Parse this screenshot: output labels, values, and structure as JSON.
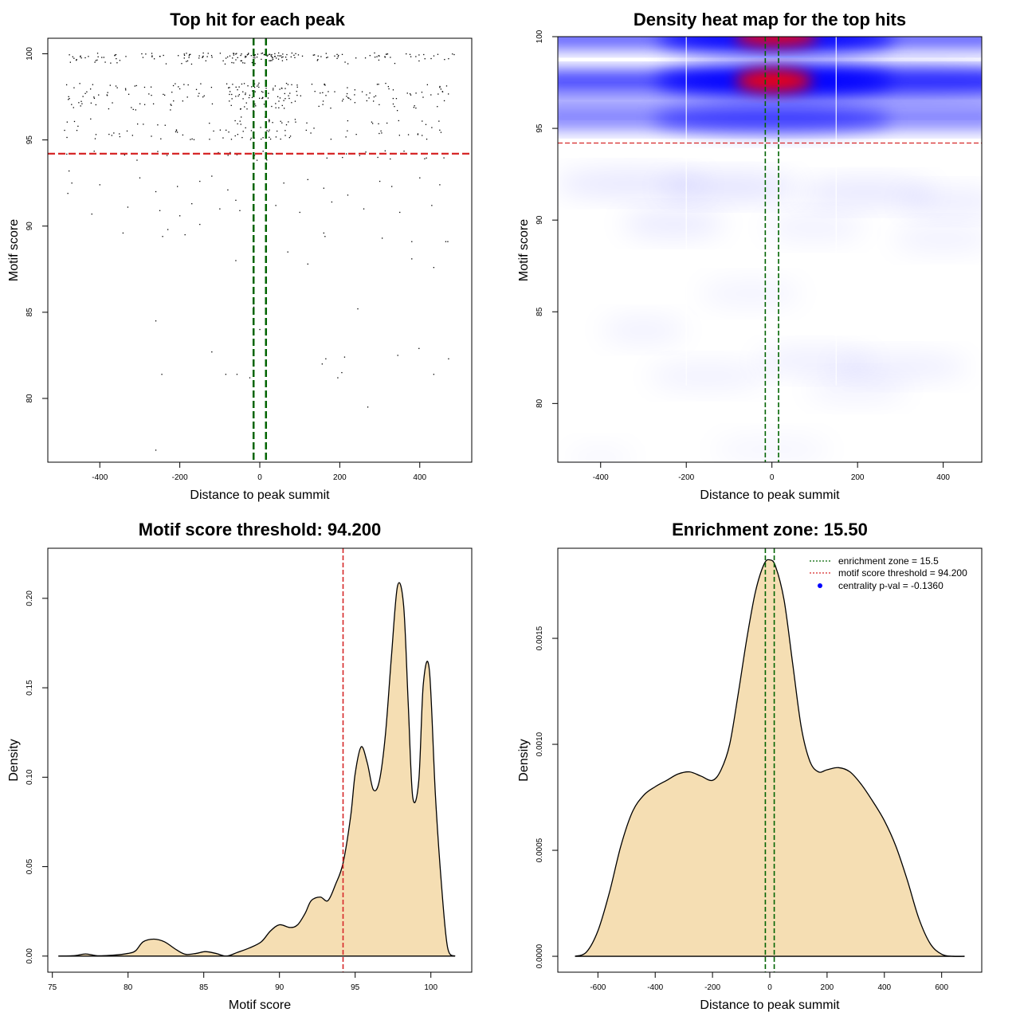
{
  "colors": {
    "threshold_line": "#d62728",
    "zone_line": "#006400",
    "density_fill": "#f5deb3",
    "heat_low": "#ffffff",
    "heat_mid": "#0000ff",
    "heat_high": "#ff0000",
    "point": "#000000",
    "legend_dot": "#0000ff"
  },
  "chart_data": [
    {
      "id": "scatter",
      "type": "scatter",
      "title": "Top hit for each peak",
      "xlabel": "Distance to peak summit",
      "ylabel": "Motif score",
      "xlim": [
        -530,
        530
      ],
      "ylim": [
        76.3,
        100.9
      ],
      "x_ticks": [
        -400,
        -200,
        0,
        200,
        400
      ],
      "y_ticks": [
        80,
        85,
        90,
        95,
        100
      ],
      "threshold": 94.2,
      "zone": [
        -15.5,
        15.5
      ],
      "score_bands": [
        {
          "y": 99.9,
          "count": 130,
          "spread": 0.15
        },
        {
          "y": 99.6,
          "count": 60,
          "spread": 0.2
        },
        {
          "y": 98.1,
          "count": 70,
          "spread": 0.2
        },
        {
          "y": 97.6,
          "count": 90,
          "spread": 0.25
        },
        {
          "y": 97.0,
          "count": 60,
          "spread": 0.3
        },
        {
          "y": 96.0,
          "count": 40,
          "spread": 0.35
        },
        {
          "y": 95.3,
          "count": 70,
          "spread": 0.3
        },
        {
          "y": 94.1,
          "count": 30,
          "spread": 0.3
        }
      ],
      "sparse_points": [
        [
          -477,
          93.2
        ],
        [
          -470,
          92.5
        ],
        [
          -480,
          91.9
        ],
        [
          -400,
          92.4
        ],
        [
          -300,
          92.8
        ],
        [
          -260,
          92.0
        ],
        [
          -206,
          92.3
        ],
        [
          -150,
          92.6
        ],
        [
          -120,
          92.9
        ],
        [
          -80,
          92.1
        ],
        [
          -60,
          91.5
        ],
        [
          60,
          92.5
        ],
        [
          120,
          92.7
        ],
        [
          160,
          92.2
        ],
        [
          220,
          91.8
        ],
        [
          300,
          92.6
        ],
        [
          330,
          92.3
        ],
        [
          400,
          92.8
        ],
        [
          450,
          92.4
        ],
        [
          -330,
          91.1
        ],
        [
          -250,
          90.9
        ],
        [
          -200,
          90.6
        ],
        [
          -170,
          91.3
        ],
        [
          -100,
          91.0
        ],
        [
          -50,
          90.9
        ],
        [
          40,
          91.2
        ],
        [
          100,
          90.8
        ],
        [
          180,
          91.4
        ],
        [
          260,
          91.0
        ],
        [
          350,
          90.8
        ],
        [
          430,
          91.2
        ],
        [
          -420,
          90.7
        ],
        [
          -342,
          89.6
        ],
        [
          -243,
          89.4
        ],
        [
          -230,
          89.8
        ],
        [
          -187,
          89.5
        ],
        [
          -150,
          90.1
        ],
        [
          160,
          89.6
        ],
        [
          163,
          89.4
        ],
        [
          306,
          89.3
        ],
        [
          380,
          89.1
        ],
        [
          465,
          89.1
        ],
        [
          470,
          89.1
        ],
        [
          -60,
          88.0
        ],
        [
          70,
          88.5
        ],
        [
          120,
          87.8
        ],
        [
          380,
          88.1
        ],
        [
          435,
          87.6
        ],
        [
          245,
          85.2
        ],
        [
          -260,
          84.5
        ],
        [
          -120,
          82.7
        ],
        [
          156,
          82.0
        ],
        [
          165,
          82.3
        ],
        [
          212,
          82.4
        ],
        [
          345,
          82.5
        ],
        [
          398,
          82.9
        ],
        [
          472,
          82.3
        ],
        [
          -245,
          81.4
        ],
        [
          -85,
          81.4
        ],
        [
          -57,
          81.4
        ],
        [
          -25,
          81.2
        ],
        [
          195,
          81.2
        ],
        [
          205,
          81.5
        ],
        [
          435,
          81.4
        ],
        [
          270,
          79.5
        ],
        [
          -260,
          77.0
        ],
        [
          -15,
          85.3
        ],
        [
          0,
          84.0
        ]
      ]
    },
    {
      "id": "heatmap",
      "type": "heatmap",
      "title": "Density heat map for the top hits",
      "xlabel": "Distance to peak summit",
      "ylabel": "Motif score",
      "xlim": [
        -500,
        490
      ],
      "ylim": [
        76.8,
        100
      ],
      "x_ticks": [
        -400,
        -200,
        0,
        200,
        400
      ],
      "y_ticks": [
        80,
        85,
        90,
        95,
        100
      ],
      "threshold": 94.2,
      "zone": [
        -15.5,
        15.5
      ],
      "ridges": [
        {
          "y": 97.6,
          "peak_x": 5,
          "width": 1.0,
          "level": 1.0
        },
        {
          "y": 99.9,
          "peak_x": 10,
          "width": 1.0,
          "level": 0.95
        },
        {
          "y": 95.5,
          "peak_x": 0,
          "width": 1.0,
          "level": 0.55
        },
        {
          "y": 97.6,
          "peak_x": 300,
          "width": 1.2,
          "level": 0.45
        }
      ]
    },
    {
      "id": "score-density",
      "type": "area",
      "title": "Motif score threshold: 94.200",
      "xlabel": "Motif score",
      "ylabel": "Density",
      "xlim": [
        74.7,
        102.7
      ],
      "ylim": [
        -0.009,
        0.228
      ],
      "x_ticks": [
        75,
        80,
        85,
        90,
        95,
        100
      ],
      "y_ticks": [
        0.0,
        0.05,
        0.1,
        0.15,
        0.2
      ],
      "y_tick_labels": [
        "0.00",
        "0.05",
        "0.10",
        "0.15",
        "0.20"
      ],
      "threshold": 94.2,
      "x": [
        75.4,
        76.5,
        77.2,
        78.0,
        79.0,
        80.0,
        80.5,
        81.0,
        81.7,
        82.4,
        83.2,
        83.8,
        84.5,
        85.1,
        85.8,
        86.5,
        87.2,
        88.0,
        88.8,
        89.4,
        90.0,
        90.7,
        91.2,
        91.7,
        92.1,
        92.7,
        93.2,
        93.7,
        94.2,
        94.7,
        95.0,
        95.4,
        95.8,
        96.2,
        96.6,
        97.0,
        97.4,
        97.8,
        98.2,
        98.5,
        98.8,
        99.2,
        99.5,
        99.9,
        100.3,
        100.7,
        101.1,
        101.6
      ],
      "y": [
        0.0,
        0.0003,
        0.0012,
        0.0002,
        0.0005,
        0.0015,
        0.003,
        0.008,
        0.0095,
        0.008,
        0.0035,
        0.001,
        0.0015,
        0.0025,
        0.0015,
        0.0,
        0.002,
        0.0045,
        0.008,
        0.014,
        0.0175,
        0.016,
        0.0175,
        0.024,
        0.031,
        0.033,
        0.031,
        0.04,
        0.052,
        0.078,
        0.102,
        0.117,
        0.108,
        0.093,
        0.098,
        0.124,
        0.168,
        0.207,
        0.196,
        0.142,
        0.089,
        0.098,
        0.152,
        0.16,
        0.09,
        0.04,
        0.005,
        0.0
      ]
    },
    {
      "id": "distance-density",
      "type": "area",
      "title": "Enrichment zone: 15.50",
      "xlabel": "Distance to peak summit",
      "ylabel": "Density",
      "xlim": [
        -740,
        740
      ],
      "ylim": [
        -7.5e-05,
        0.001925
      ],
      "x_ticks": [
        -600,
        -400,
        -200,
        0,
        200,
        400,
        600
      ],
      "y_ticks": [
        0.0,
        0.0005,
        0.001,
        0.0015
      ],
      "y_tick_labels": [
        "0.0000",
        "0.0005",
        "0.0010",
        "0.0015"
      ],
      "zone": [
        -15.5,
        15.5
      ],
      "x": [
        -680,
        -640,
        -600,
        -560,
        -520,
        -480,
        -440,
        -400,
        -360,
        -320,
        -280,
        -240,
        -200,
        -170,
        -140,
        -110,
        -80,
        -50,
        -20,
        0,
        20,
        50,
        80,
        110,
        140,
        170,
        200,
        240,
        280,
        320,
        360,
        400,
        440,
        480,
        520,
        560,
        600,
        640,
        680
      ],
      "y": [
        0.0,
        2e-05,
        0.00012,
        0.0003,
        0.00052,
        0.00068,
        0.00076,
        0.0008,
        0.00083,
        0.00086,
        0.00087,
        0.00085,
        0.00083,
        0.00088,
        0.001,
        0.00124,
        0.0015,
        0.00172,
        0.00185,
        0.00187,
        0.00184,
        0.00168,
        0.00138,
        0.00108,
        0.00092,
        0.00087,
        0.00088,
        0.00089,
        0.00087,
        0.00081,
        0.00073,
        0.00064,
        0.00052,
        0.00036,
        0.00018,
        6e-05,
        1e-05,
        0.0,
        0.0
      ],
      "legend": {
        "position": "top-right",
        "entries": [
          {
            "label": "enrichment zone = 15.5",
            "style": "dotted-line",
            "color": "#006400"
          },
          {
            "label": "motif score threshold = 94.200",
            "style": "dotted-line",
            "color": "#d62728"
          },
          {
            "label": "centrality p-val = -0.1360",
            "style": "dot",
            "color": "#0000ff"
          }
        ]
      }
    }
  ]
}
